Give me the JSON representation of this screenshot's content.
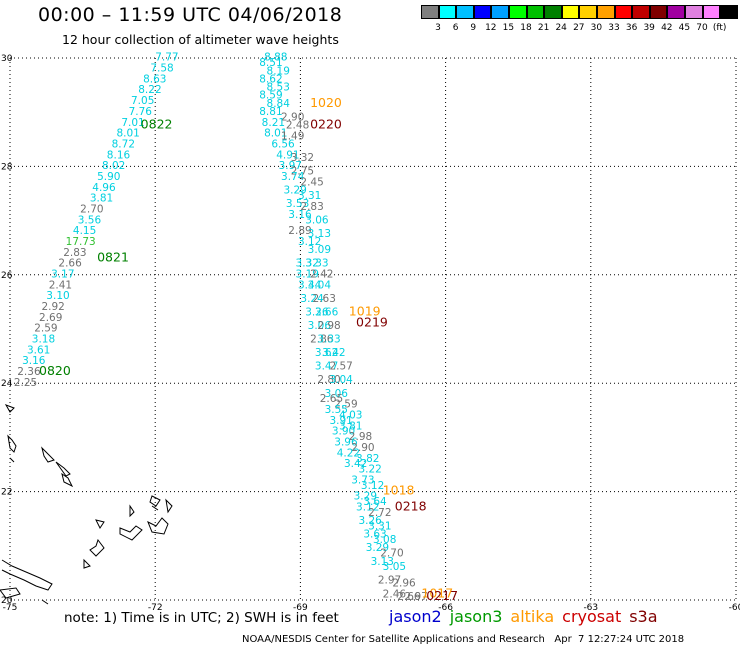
{
  "title": "00:00 – 11:59 UTC 04/06/2018",
  "subtitle": "12 hour collection of altimeter wave heights",
  "colorbar": {
    "colors": [
      "#7f7f7f",
      "#00ffff",
      "#00c0ff",
      "#0000ff",
      "#00a0ff",
      "#00ff00",
      "#00c000",
      "#008000",
      "#ffff00",
      "#ffd000",
      "#ffa000",
      "#ff0000",
      "#c00000",
      "#800000",
      "#a000a0",
      "#e080e0",
      "#ff80ff",
      "#000000"
    ],
    "labels": [
      "3",
      "6",
      "9",
      "12",
      "15",
      "18",
      "21",
      "24",
      "27",
      "30",
      "33",
      "36",
      "39",
      "42",
      "45",
      "70",
      "(ft)"
    ]
  },
  "axes": {
    "lon_ticks": [
      "-75",
      "-72",
      "-69",
      "-66",
      "-63",
      "-60"
    ],
    "lat_ticks": [
      "30",
      "28",
      "26",
      "24",
      "22",
      "20"
    ]
  },
  "tracks": {
    "west": {
      "tags": [
        {
          "text": "0822",
          "color": "#008000",
          "lon": -72.3,
          "lat": 28.7
        },
        {
          "text": "0821",
          "color": "#008000",
          "lon": -73.2,
          "lat": 26.25
        },
        {
          "text": "0820",
          "color": "#008000",
          "lon": -74.4,
          "lat": 24.15
        }
      ],
      "points": [
        {
          "t": "7.77",
          "c": "#00d0e0",
          "lon": -72.0,
          "lat": 29.95
        },
        {
          "t": "7.58",
          "c": "#00d0e0",
          "lon": -72.1,
          "lat": 29.75
        },
        {
          "t": "8.63",
          "c": "#00d0e0",
          "lon": -72.25,
          "lat": 29.55
        },
        {
          "t": "8.22",
          "c": "#00d0e0",
          "lon": -72.35,
          "lat": 29.35
        },
        {
          "t": "7.05",
          "c": "#00d0e0",
          "lon": -72.5,
          "lat": 29.15
        },
        {
          "t": "7.76",
          "c": "#00d0e0",
          "lon": -72.55,
          "lat": 28.95
        },
        {
          "t": "7.01",
          "c": "#00d0e0",
          "lon": -72.7,
          "lat": 28.75
        },
        {
          "t": "8.01",
          "c": "#00d0e0",
          "lon": -72.8,
          "lat": 28.55
        },
        {
          "t": "8.72",
          "c": "#00d0e0",
          "lon": -72.9,
          "lat": 28.35
        },
        {
          "t": "8.16",
          "c": "#00d0e0",
          "lon": -73.0,
          "lat": 28.15
        },
        {
          "t": "8.02",
          "c": "#00d0e0",
          "lon": -73.1,
          "lat": 27.95
        },
        {
          "t": "4.96",
          "c": "#00d0e0",
          "lon": -73.3,
          "lat": 27.55
        },
        {
          "t": "5.90",
          "c": "#00d0e0",
          "lon": -73.2,
          "lat": 27.75
        },
        {
          "t": "3.81",
          "c": "#00d0e0",
          "lon": -73.35,
          "lat": 27.35
        },
        {
          "t": "2.70",
          "c": "#707070",
          "lon": -73.55,
          "lat": 27.15
        },
        {
          "t": "3.56",
          "c": "#00d0e0",
          "lon": -73.6,
          "lat": 26.95
        },
        {
          "t": "4.15",
          "c": "#00d0e0",
          "lon": -73.7,
          "lat": 26.75
        },
        {
          "t": "17.73",
          "c": "#30c030",
          "lon": -73.85,
          "lat": 26.55
        },
        {
          "t": "2.83",
          "c": "#707070",
          "lon": -73.9,
          "lat": 26.35
        },
        {
          "t": "2.66",
          "c": "#707070",
          "lon": -74.0,
          "lat": 26.15
        },
        {
          "t": "3.17",
          "c": "#00d0e0",
          "lon": -74.15,
          "lat": 25.95
        },
        {
          "t": "2.41",
          "c": "#707070",
          "lon": -74.2,
          "lat": 25.75
        },
        {
          "t": "3.10",
          "c": "#00d0e0",
          "lon": -74.25,
          "lat": 25.55
        },
        {
          "t": "2.92",
          "c": "#707070",
          "lon": -74.35,
          "lat": 25.35
        },
        {
          "t": "2.69",
          "c": "#707070",
          "lon": -74.4,
          "lat": 25.15
        },
        {
          "t": "2.59",
          "c": "#707070",
          "lon": -74.5,
          "lat": 24.95
        },
        {
          "t": "3.18",
          "c": "#00d0e0",
          "lon": -74.55,
          "lat": 24.75
        },
        {
          "t": "3.61",
          "c": "#00d0e0",
          "lon": -74.65,
          "lat": 24.55
        },
        {
          "t": "3.16",
          "c": "#00d0e0",
          "lon": -74.75,
          "lat": 24.35
        },
        {
          "t": "2.36",
          "c": "#707070",
          "lon": -74.85,
          "lat": 24.15
        },
        {
          "t": "2.25",
          "c": "#707070",
          "lon": -74.92,
          "lat": 23.95
        }
      ]
    },
    "east": {
      "tags": [
        {
          "text": "1020",
          "color": "#ff9900",
          "lon": -68.8,
          "lat": 29.1
        },
        {
          "text": "0220",
          "color": "#800000",
          "lon": -68.8,
          "lat": 28.7
        },
        {
          "text": "1019",
          "color": "#ff9900",
          "lon": -68.0,
          "lat": 25.25
        },
        {
          "text": "0219",
          "color": "#800000",
          "lon": -67.85,
          "lat": 25.05
        },
        {
          "text": "1018",
          "color": "#ff9900",
          "lon": -67.3,
          "lat": 21.95
        },
        {
          "text": "0218",
          "color": "#800000",
          "lon": -67.05,
          "lat": 21.65
        },
        {
          "text": "1017",
          "color": "#ff9900",
          "lon": -66.5,
          "lat": 20.05
        },
        {
          "text": "0217",
          "color": "#800000",
          "lon": -66.4,
          "lat": 20.0
        }
      ],
      "points": [
        {
          "t": "8.88",
          "c": "#00d0e0",
          "lon": -69.75,
          "lat": 29.95
        },
        {
          "t": "8.51",
          "c": "#00d0e0",
          "lon": -69.85,
          "lat": 29.85
        },
        {
          "t": "8.19",
          "c": "#00d0e0",
          "lon": -69.7,
          "lat": 29.7
        },
        {
          "t": "8.62",
          "c": "#00d0e0",
          "lon": -69.85,
          "lat": 29.55
        },
        {
          "t": "8.53",
          "c": "#00d0e0",
          "lon": -69.7,
          "lat": 29.4
        },
        {
          "t": "8.59",
          "c": "#00d0e0",
          "lon": -69.85,
          "lat": 29.25
        },
        {
          "t": "8.84",
          "c": "#00d0e0",
          "lon": -69.7,
          "lat": 29.1
        },
        {
          "t": "8.81",
          "c": "#00d0e0",
          "lon": -69.85,
          "lat": 28.95
        },
        {
          "t": "2.90",
          "c": "#707070",
          "lon": -69.4,
          "lat": 28.85
        },
        {
          "t": "8.21",
          "c": "#00d0e0",
          "lon": -69.8,
          "lat": 28.75
        },
        {
          "t": "2.48",
          "c": "#707070",
          "lon": -69.3,
          "lat": 28.7
        },
        {
          "t": "8.01",
          "c": "#00d0e0",
          "lon": -69.75,
          "lat": 28.55
        },
        {
          "t": "1.49",
          "c": "#707070",
          "lon": -69.4,
          "lat": 28.5
        },
        {
          "t": "6.56",
          "c": "#00d0e0",
          "lon": -69.6,
          "lat": 28.35
        },
        {
          "t": "4.91",
          "c": "#00d0e0",
          "lon": -69.5,
          "lat": 28.15
        },
        {
          "t": "3.32",
          "c": "#707070",
          "lon": -69.2,
          "lat": 28.1
        },
        {
          "t": "3.97",
          "c": "#00d0e0",
          "lon": -69.45,
          "lat": 27.95
        },
        {
          "t": "2.75",
          "c": "#707070",
          "lon": -69.2,
          "lat": 27.85
        },
        {
          "t": "3.74",
          "c": "#00d0e0",
          "lon": -69.4,
          "lat": 27.75
        },
        {
          "t": "2.45",
          "c": "#707070",
          "lon": -69.0,
          "lat": 27.65
        },
        {
          "t": "3.29",
          "c": "#00d0e0",
          "lon": -69.35,
          "lat": 27.5
        },
        {
          "t": "3.31",
          "c": "#00d0e0",
          "lon": -69.05,
          "lat": 27.4
        },
        {
          "t": "3.53",
          "c": "#00d0e0",
          "lon": -69.3,
          "lat": 27.25
        },
        {
          "t": "2.83",
          "c": "#707070",
          "lon": -69.0,
          "lat": 27.2
        },
        {
          "t": "3.16",
          "c": "#00d0e0",
          "lon": -69.25,
          "lat": 27.05
        },
        {
          "t": "3.06",
          "c": "#00d0e0",
          "lon": -68.9,
          "lat": 26.95
        },
        {
          "t": "2.89",
          "c": "#707070",
          "lon": -69.25,
          "lat": 26.75
        },
        {
          "t": "3.13",
          "c": "#00d0e0",
          "lon": -68.85,
          "lat": 26.7
        },
        {
          "t": "3.12",
          "c": "#00d0e0",
          "lon": -69.05,
          "lat": 26.55
        },
        {
          "t": "3.09",
          "c": "#00d0e0",
          "lon": -68.85,
          "lat": 26.4
        },
        {
          "t": "3.32",
          "c": "#00d0e0",
          "lon": -69.1,
          "lat": 26.15
        },
        {
          "t": "3.33",
          "c": "#00d0e0",
          "lon": -68.9,
          "lat": 26.15
        },
        {
          "t": "3.19",
          "c": "#00d0e0",
          "lon": -69.1,
          "lat": 25.95
        },
        {
          "t": "2.42",
          "c": "#707070",
          "lon": -68.8,
          "lat": 25.95
        },
        {
          "t": "3.44",
          "c": "#00d0e0",
          "lon": -69.05,
          "lat": 25.75
        },
        {
          "t": "3.04",
          "c": "#00d0e0",
          "lon": -68.85,
          "lat": 25.75
        },
        {
          "t": "3.24",
          "c": "#00d0e0",
          "lon": -69.0,
          "lat": 25.5
        },
        {
          "t": "2.63",
          "c": "#707070",
          "lon": -68.75,
          "lat": 25.5
        },
        {
          "t": "3.26",
          "c": "#00d0e0",
          "lon": -68.9,
          "lat": 25.25
        },
        {
          "t": "3.66",
          "c": "#00d0e0",
          "lon": -68.7,
          "lat": 25.25
        },
        {
          "t": "3.06",
          "c": "#00d0e0",
          "lon": -68.85,
          "lat": 25.0
        },
        {
          "t": "2.98",
          "c": "#707070",
          "lon": -68.65,
          "lat": 25.0
        },
        {
          "t": "2.86",
          "c": "#707070",
          "lon": -68.8,
          "lat": 24.75
        },
        {
          "t": "3.33",
          "c": "#00d0e0",
          "lon": -68.65,
          "lat": 24.75
        },
        {
          "t": "3.62",
          "c": "#00d0e0",
          "lon": -68.7,
          "lat": 24.5
        },
        {
          "t": "3.42",
          "c": "#00d0e0",
          "lon": -68.55,
          "lat": 24.5
        },
        {
          "t": "3.47",
          "c": "#00d0e0",
          "lon": -68.7,
          "lat": 24.25
        },
        {
          "t": "2.57",
          "c": "#707070",
          "lon": -68.4,
          "lat": 24.25
        },
        {
          "t": "2.80",
          "c": "#707070",
          "lon": -68.65,
          "lat": 24.0
        },
        {
          "t": "3.04",
          "c": "#00d0e0",
          "lon": -68.4,
          "lat": 24.0
        },
        {
          "t": "3.06",
          "c": "#00d0e0",
          "lon": -68.5,
          "lat": 23.75
        },
        {
          "t": "2.65",
          "c": "#707070",
          "lon": -68.6,
          "lat": 23.65
        },
        {
          "t": "2.59",
          "c": "#707070",
          "lon": -68.3,
          "lat": 23.55
        },
        {
          "t": "3.55",
          "c": "#00d0e0",
          "lon": -68.5,
          "lat": 23.45
        },
        {
          "t": "4.03",
          "c": "#00d0e0",
          "lon": -68.2,
          "lat": 23.35
        },
        {
          "t": "3.91",
          "c": "#00d0e0",
          "lon": -68.4,
          "lat": 23.25
        },
        {
          "t": "3.81",
          "c": "#00d0e0",
          "lon": -68.2,
          "lat": 23.15
        },
        {
          "t": "3.90",
          "c": "#00d0e0",
          "lon": -68.35,
          "lat": 23.05
        },
        {
          "t": "2.98",
          "c": "#707070",
          "lon": -68.0,
          "lat": 22.95
        },
        {
          "t": "3.96",
          "c": "#00d0e0",
          "lon": -68.3,
          "lat": 22.85
        },
        {
          "t": "2.90",
          "c": "#707070",
          "lon": -67.95,
          "lat": 22.75
        },
        {
          "t": "4.22",
          "c": "#00d0e0",
          "lon": -68.25,
          "lat": 22.65
        },
        {
          "t": "3.82",
          "c": "#00d0e0",
          "lon": -67.85,
          "lat": 22.55
        },
        {
          "t": "3.42",
          "c": "#00d0e0",
          "lon": -68.1,
          "lat": 22.45
        },
        {
          "t": "3.22",
          "c": "#00d0e0",
          "lon": -67.8,
          "lat": 22.35
        },
        {
          "t": "3.73",
          "c": "#00d0e0",
          "lon": -67.95,
          "lat": 22.15
        },
        {
          "t": "3.12",
          "c": "#00d0e0",
          "lon": -67.75,
          "lat": 22.05
        },
        {
          "t": "3.29",
          "c": "#00d0e0",
          "lon": -67.9,
          "lat": 21.85
        },
        {
          "t": "3.64",
          "c": "#00d0e0",
          "lon": -67.7,
          "lat": 21.75
        },
        {
          "t": "3.12",
          "c": "#00d0e0",
          "lon": -67.85,
          "lat": 21.65
        },
        {
          "t": "2.72",
          "c": "#707070",
          "lon": -67.6,
          "lat": 21.55
        },
        {
          "t": "3.26",
          "c": "#00d0e0",
          "lon": -67.8,
          "lat": 21.4
        },
        {
          "t": "3.31",
          "c": "#00d0e0",
          "lon": -67.6,
          "lat": 21.3
        },
        {
          "t": "3.63",
          "c": "#00d0e0",
          "lon": -67.7,
          "lat": 21.15
        },
        {
          "t": "3.08",
          "c": "#00d0e0",
          "lon": -67.5,
          "lat": 21.05
        },
        {
          "t": "3.29",
          "c": "#00d0e0",
          "lon": -67.65,
          "lat": 20.9
        },
        {
          "t": "2.70",
          "c": "#707070",
          "lon": -67.35,
          "lat": 20.8
        },
        {
          "t": "3.13",
          "c": "#00d0e0",
          "lon": -67.55,
          "lat": 20.65
        },
        {
          "t": "3.05",
          "c": "#00d0e0",
          "lon": -67.3,
          "lat": 20.55
        },
        {
          "t": "2.97",
          "c": "#707070",
          "lon": -67.4,
          "lat": 20.3
        },
        {
          "t": "2.96",
          "c": "#707070",
          "lon": -67.1,
          "lat": 20.25
        },
        {
          "t": "2.46",
          "c": "#707070",
          "lon": -67.3,
          "lat": 20.05
        },
        {
          "t": "2.66",
          "c": "#707070",
          "lon": -67.0,
          "lat": 20.0
        },
        {
          "t": "2.97",
          "c": "#707070",
          "lon": -66.85,
          "lat": 20.0
        }
      ]
    }
  },
  "note": "note: 1) Time is in UTC; 2) SWH is in feet",
  "legend": [
    {
      "name": "jason2",
      "color": "#0000cc"
    },
    {
      "name": "jason3",
      "color": "#009900"
    },
    {
      "name": "altika",
      "color": "#ff9900"
    },
    {
      "name": "cryosat",
      "color": "#cc0000"
    },
    {
      "name": "s3a",
      "color": "#800000"
    }
  ],
  "credit": "NOAA/NESDIS Center for Satellite Applications and Research   Apr  7 12:27:24 UTC 2018"
}
